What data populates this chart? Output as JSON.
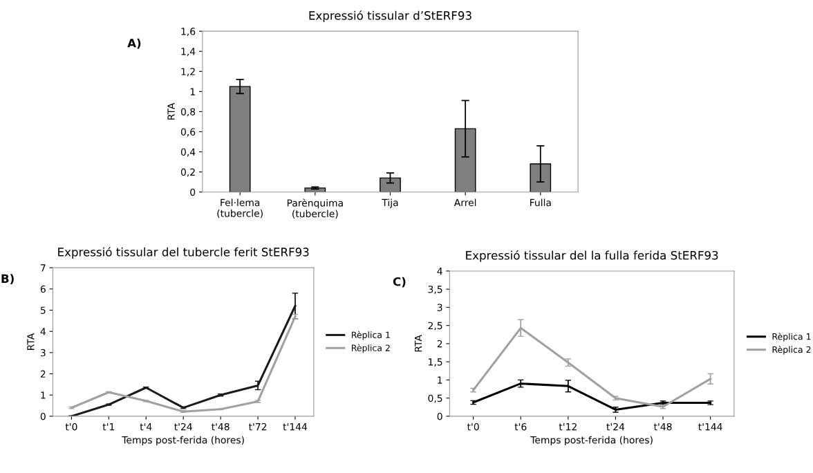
{
  "chart_data": [
    {
      "type": "bar",
      "title": "Expressió tissular d’StERF93",
      "ylabel": "RTA",
      "annotations": [
        "A)"
      ],
      "categories": [
        "Fel·lema\n(tubercle)",
        "Parènquima\n(tubercle)",
        "Tija",
        "Arrel",
        "Fulla"
      ],
      "values": [
        1.05,
        0.04,
        0.14,
        0.63,
        0.28
      ],
      "errors": [
        0.07,
        0.01,
        0.05,
        0.28,
        0.18
      ],
      "color": "#7f7f7f",
      "ylim": [
        0,
        1.6
      ],
      "yticks": [
        0,
        {
          "value": 0.2,
          "label": "0,2"
        },
        {
          "value": 0.4,
          "label": "0,4"
        },
        {
          "value": 0.6,
          "label": "0,6"
        },
        {
          "value": 0.8,
          "label": "0,8"
        },
        1,
        {
          "value": 1.2,
          "label": "1,2"
        },
        {
          "value": 1.4,
          "label": "1,4"
        },
        {
          "value": 1.6,
          "label": "1,6"
        }
      ],
      "grid": false
    },
    {
      "type": "line",
      "title": "Expressió tissular del tubercle ferit StERF93",
      "xlabel": "Temps post-ferida (hores)",
      "ylabel": "RTA",
      "annotations": [
        "B)"
      ],
      "categories": [
        "t'0",
        "t'1",
        "t'4",
        "t'24",
        "t'48",
        "t'72",
        "t'144"
      ],
      "series": [
        {
          "name": "Rèplica 1",
          "color": "#1a1a1a",
          "values": [
            0,
            0.55,
            1.35,
            0.4,
            1.0,
            1.45,
            5.2
          ],
          "errors": [
            0.02,
            0.03,
            0.03,
            0.04,
            0.05,
            0.2,
            0.6
          ]
        },
        {
          "name": "Rèplica 2",
          "color": "#a0a0a0",
          "values": [
            0.4,
            1.13,
            0.72,
            0.22,
            0.33,
            0.7,
            4.7
          ],
          "errors": [
            0.04,
            0.03,
            0.03,
            0.04,
            0.02,
            0.05,
            0.1
          ]
        }
      ],
      "ylim": [
        0,
        7
      ],
      "yticks": [
        0,
        1,
        2,
        3,
        4,
        5,
        6,
        7
      ],
      "grid": false,
      "legend": "right",
      "marker": "none",
      "line_style": "solid"
    },
    {
      "type": "line",
      "title": "Expressió tissular del la fulla ferida StERF93",
      "xlabel": "Temps post-ferida (hores)",
      "ylabel": "RTA",
      "annotations": [
        "C)"
      ],
      "categories": [
        "t'0",
        "t'6",
        "t'12",
        "t'24",
        "t'48",
        "t'144"
      ],
      "series": [
        {
          "name": "Rèplica 1",
          "color": "#000000",
          "values": [
            0.38,
            0.9,
            0.83,
            0.18,
            0.37,
            0.37
          ],
          "errors": [
            0.05,
            0.1,
            0.16,
            0.07,
            0.05,
            0.05
          ]
        },
        {
          "name": "Rèplica 2",
          "color": "#a0a0a0",
          "values": [
            0.72,
            2.43,
            1.48,
            0.5,
            0.26,
            1.03
          ],
          "errors": [
            0.05,
            0.23,
            0.1,
            0.05,
            0.05,
            0.14
          ]
        }
      ],
      "ylim": [
        0,
        4
      ],
      "yticks": [
        0,
        {
          "value": 0.5,
          "label": "0,5"
        },
        1,
        {
          "value": 1.5,
          "label": "1,5"
        },
        2,
        {
          "value": 2.5,
          "label": "2,5"
        },
        3,
        {
          "value": 3.5,
          "label": "3,5"
        },
        4
      ],
      "grid": false,
      "legend": "right",
      "marker": "none",
      "line_style": "solid"
    }
  ]
}
